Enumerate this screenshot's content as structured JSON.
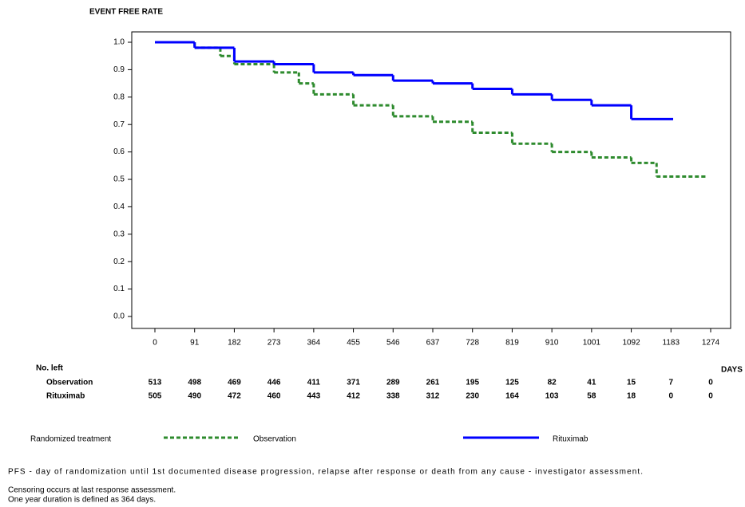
{
  "chart_data": {
    "type": "step",
    "ylabel": "EVENT FREE RATE",
    "xlabel": "DAYS",
    "xlim": [
      0,
      1274
    ],
    "xticks": [
      0,
      91,
      182,
      273,
      364,
      455,
      546,
      637,
      728,
      819,
      910,
      1001,
      1092,
      1183,
      1274
    ],
    "ylim": [
      0,
      1
    ],
    "yticks": [
      {
        "value": 0,
        "label": "0.0"
      },
      0.1,
      0.2,
      0.3,
      0.4,
      0.5,
      0.6,
      0.7,
      0.8,
      0.9,
      {
        "value": 1,
        "label": "1.0"
      }
    ],
    "legend_title": "Randomized treatment",
    "series": [
      {
        "name": "Observation",
        "color": "#2e8b2e",
        "dashed": true,
        "x": [
          0,
          91,
          150,
          182,
          273,
          330,
          364,
          455,
          546,
          637,
          728,
          819,
          910,
          1001,
          1092,
          1150,
          1262
        ],
        "values": [
          1.0,
          0.98,
          0.95,
          0.92,
          0.89,
          0.85,
          0.81,
          0.77,
          0.73,
          0.71,
          0.67,
          0.63,
          0.6,
          0.58,
          0.56,
          0.51,
          0.51
        ]
      },
      {
        "name": "Rituximab",
        "color": "#0000ff",
        "dashed": false,
        "x": [
          0,
          91,
          182,
          273,
          364,
          455,
          546,
          637,
          728,
          819,
          910,
          1001,
          1092,
          1188
        ],
        "values": [
          1.0,
          0.98,
          0.93,
          0.92,
          0.89,
          0.88,
          0.86,
          0.85,
          0.83,
          0.81,
          0.79,
          0.77,
          0.72,
          0.72
        ]
      }
    ],
    "risk_table": {
      "title": "No. left",
      "rows": [
        {
          "name": "Observation",
          "values": [
            513,
            498,
            469,
            446,
            411,
            371,
            289,
            261,
            195,
            125,
            82,
            41,
            15,
            7,
            0
          ]
        },
        {
          "name": "Rituximab",
          "values": [
            505,
            490,
            472,
            460,
            443,
            412,
            338,
            312,
            230,
            164,
            103,
            58,
            18,
            0,
            0
          ]
        }
      ]
    },
    "footnotes": [
      "PFS - day of randomization until 1st documented disease progression, relapse after response or death from any cause - investigator assessment.",
      "Censoring occurs at last response assessment.",
      "One year duration is defined as 364 days."
    ]
  }
}
